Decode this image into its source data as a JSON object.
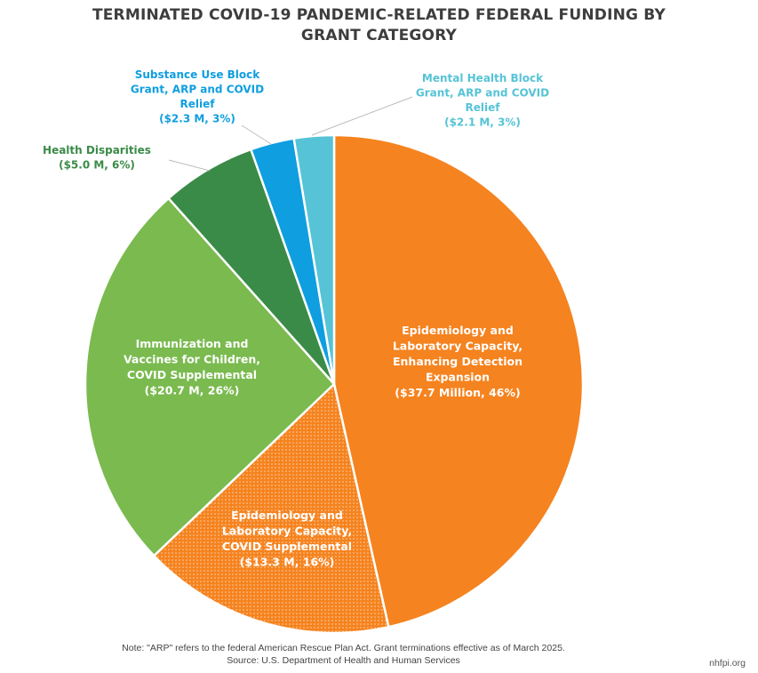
{
  "title": {
    "line1": "TERMINATED COVID-19 PANDEMIC-RELATED FEDERAL FUNDING BY",
    "line2": "GRANT CATEGORY"
  },
  "chart_data": {
    "type": "pie",
    "title": "TERMINATED COVID-19 PANDEMIC-RELATED FEDERAL FUNDING BY GRANT CATEGORY",
    "units": "Million USD",
    "start": "12 o'clock, clockwise",
    "slices": [
      {
        "key": "epi_expansion",
        "value": 37.7,
        "percent": 46,
        "color": "#f5831f",
        "pattern": "solid",
        "label": [
          "Epidemiology and",
          "Laboratory Capacity,",
          "Enhancing Detection",
          "Expansion",
          "($37.7 Million, 46%)"
        ]
      },
      {
        "key": "epi_covid",
        "value": 13.3,
        "percent": 16,
        "color": "#f5831f",
        "pattern": "dotted",
        "label": [
          "Epidemiology and",
          "Laboratory Capacity,",
          "COVID Supplemental",
          "($13.3 M, 16%)"
        ]
      },
      {
        "key": "immunization",
        "value": 20.7,
        "percent": 26,
        "color": "#7aba4f",
        "pattern": "solid",
        "label": [
          "Immunization and",
          "Vaccines for Children,",
          "COVID Supplemental",
          "($20.7 M, 26%)"
        ]
      },
      {
        "key": "health_disparities",
        "value": 5.0,
        "percent": 6,
        "color": "#3a8b47",
        "pattern": "solid",
        "label": [
          "Health Disparities",
          "($5.0 M, 6%)"
        ]
      },
      {
        "key": "substance_use",
        "value": 2.3,
        "percent": 3,
        "color": "#0f9ee0",
        "pattern": "solid",
        "label": [
          "Substance Use Block",
          "Grant, ARP and COVID",
          "Relief",
          "($2.3 M, 3%)"
        ]
      },
      {
        "key": "mental_health",
        "value": 2.1,
        "percent": 3,
        "color": "#56c3d6",
        "pattern": "solid",
        "label": [
          "Mental Health Block",
          "Grant, ARP and COVID",
          "Relief",
          "($2.1 M, 3%)"
        ]
      }
    ]
  },
  "footer": {
    "note": "Note: \"ARP\" refers to the federal American Rescue Plan Act. Grant terminations effective as of March 2025.",
    "source": "Source: U.S. Department of Health and Human Services",
    "credit": "nhfpi.org"
  }
}
